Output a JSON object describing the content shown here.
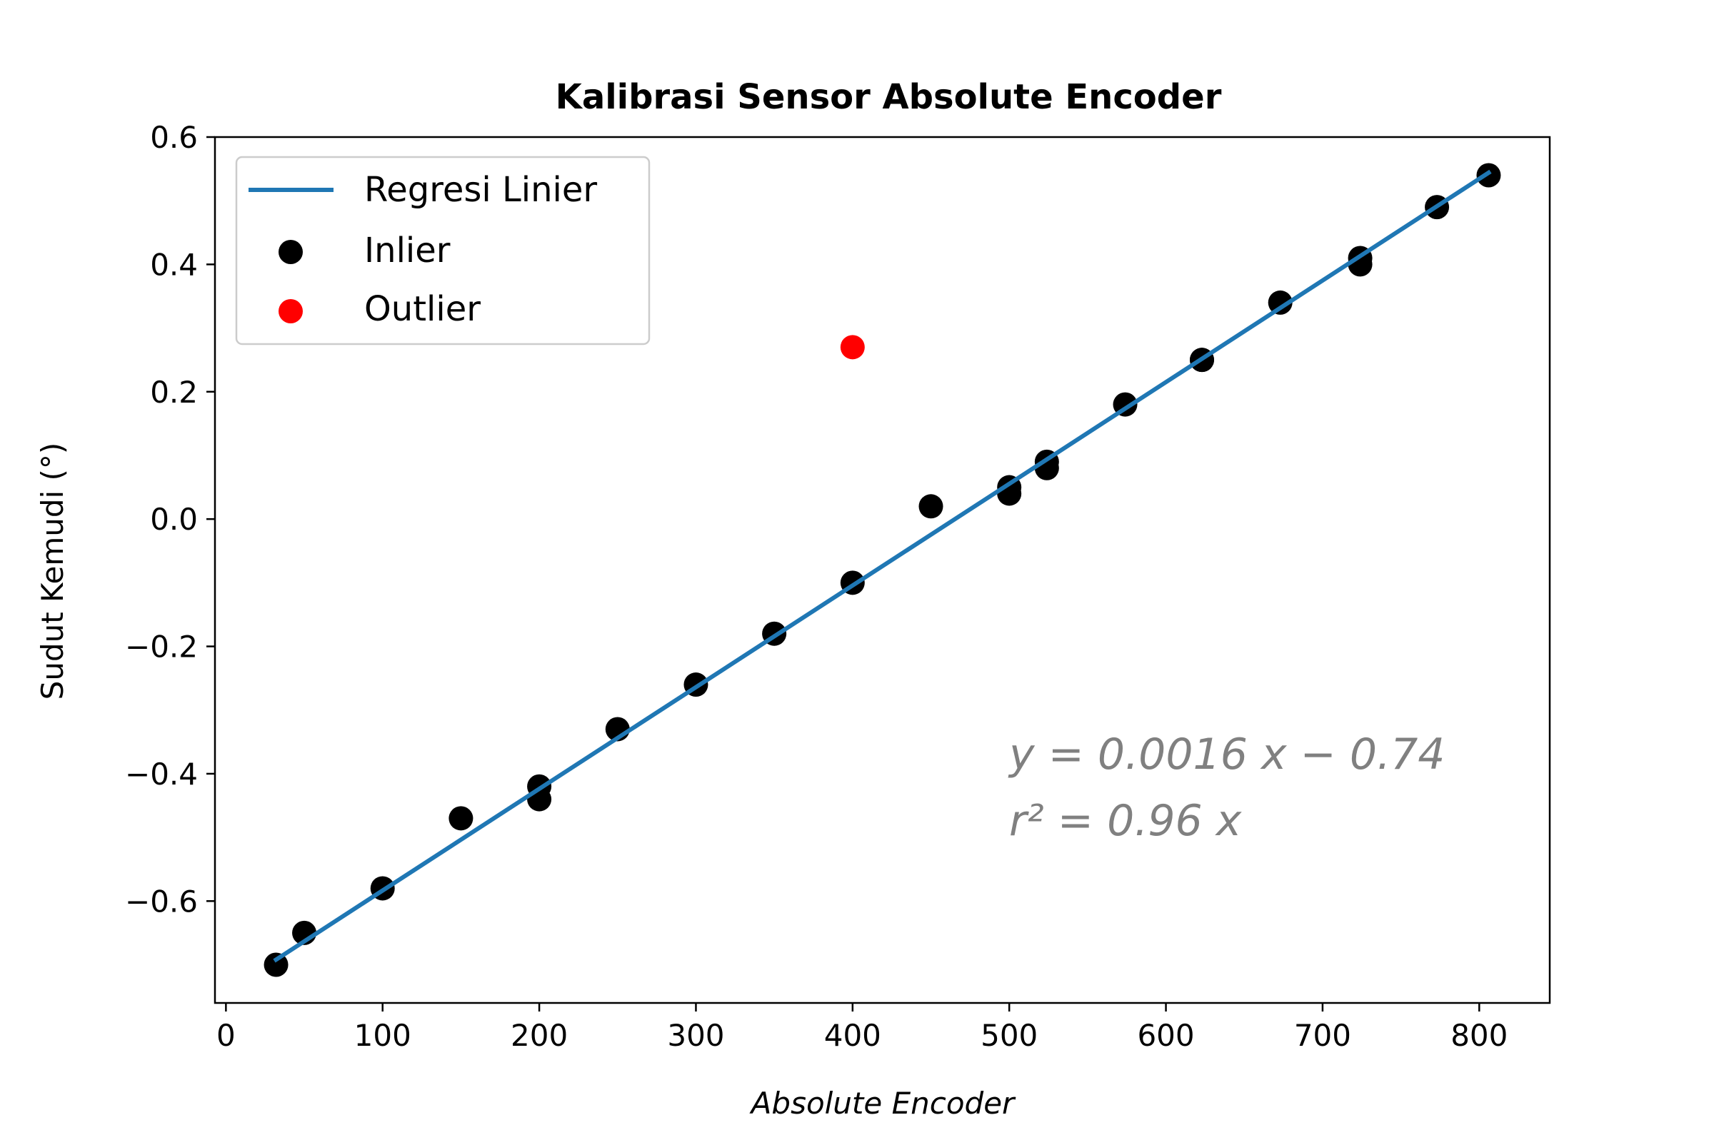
{
  "chart_data": {
    "type": "scatter",
    "title": "Kalibrasi Sensor Absolute Encoder",
    "xlabel": "Absolute Encoder",
    "ylabel": "Sudut Kemudi (°)",
    "xlim": [
      -7,
      845
    ],
    "ylim": [
      -0.76,
      0.6
    ],
    "xticks": [
      0,
      100,
      200,
      300,
      400,
      500,
      600,
      700,
      800
    ],
    "xtick_labels": [
      "0",
      "100",
      "200",
      "300",
      "400",
      "500",
      "600",
      "700",
      "800"
    ],
    "yticks": [
      -0.6,
      -0.4,
      -0.2,
      0.0,
      0.2,
      0.4,
      0.6
    ],
    "ytick_labels": [
      "−0.6",
      "−0.4",
      "−0.2",
      "0.0",
      "0.2",
      "0.4",
      "0.6"
    ],
    "grid": false,
    "legend_position": "top-left",
    "series": [
      {
        "name": "Regresi Linier",
        "kind": "line",
        "color": "#1f77b4",
        "x": [
          32,
          806
        ],
        "y": [
          -0.692,
          0.544
        ]
      },
      {
        "name": "Inlier",
        "kind": "scatter",
        "color": "#000000",
        "x": [
          32,
          50,
          100,
          150,
          200,
          200,
          250,
          300,
          350,
          400,
          450,
          500,
          500,
          524,
          524,
          574,
          623,
          623,
          673,
          724,
          724,
          773,
          806
        ],
        "y": [
          -0.7,
          -0.65,
          -0.58,
          -0.47,
          -0.44,
          -0.42,
          -0.33,
          -0.26,
          -0.18,
          -0.1,
          0.02,
          0.04,
          0.05,
          0.08,
          0.09,
          0.18,
          0.25,
          0.25,
          0.34,
          0.4,
          0.41,
          0.49,
          0.54
        ]
      },
      {
        "name": "Outlier",
        "kind": "scatter",
        "color": "#ff0000",
        "x": [
          400
        ],
        "y": [
          0.27
        ]
      }
    ],
    "annotation": {
      "line1": "y = 0.0016 x − 0.74",
      "line2": "r² = 0.96 x",
      "color": "#808080"
    }
  }
}
